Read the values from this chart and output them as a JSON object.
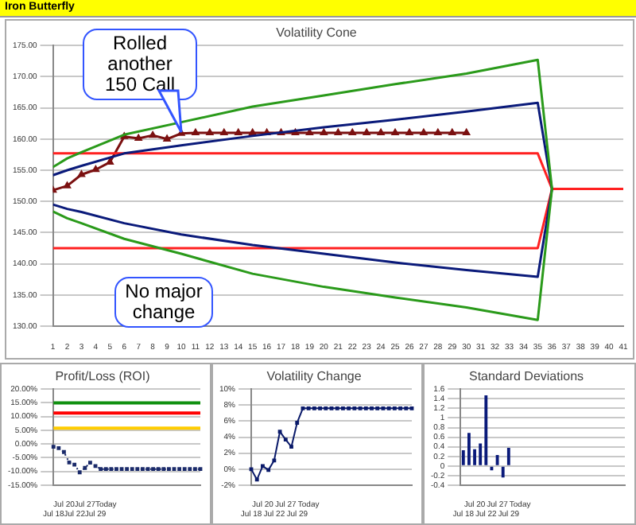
{
  "chart_data": [
    {
      "type": "other",
      "title": "Iron Butterfly"
    },
    {
      "type": "line",
      "title": "Volatility Cone",
      "xlim": [
        1,
        41
      ],
      "xticks": [
        1,
        2,
        3,
        4,
        5,
        6,
        7,
        8,
        9,
        10,
        11,
        12,
        13,
        14,
        15,
        16,
        17,
        18,
        19,
        20,
        21,
        22,
        23,
        24,
        25,
        26,
        27,
        28,
        29,
        30,
        31,
        32,
        33,
        34,
        35,
        36,
        37,
        38,
        39,
        40,
        41
      ],
      "ylim": [
        130,
        175
      ],
      "yticks": [
        {
          "value": 130,
          "label": "130.00"
        },
        {
          "value": 135,
          "label": "135.00"
        },
        {
          "value": 140,
          "label": "140.00"
        },
        {
          "value": 145,
          "label": "145.00"
        },
        {
          "value": 150,
          "label": "150.00"
        },
        {
          "value": 155,
          "label": "155.00"
        },
        {
          "value": 160,
          "label": "160.00"
        },
        {
          "value": 165,
          "label": "165.00"
        },
        {
          "value": 170,
          "label": "170.00"
        },
        {
          "value": 175,
          "label": "175.00"
        }
      ],
      "grid": "y",
      "marker": "none",
      "line_style": "solid",
      "series": [
        {
          "color": "#2a9a1a",
          "x": [
            1,
            2,
            3,
            6,
            10,
            15,
            20,
            25,
            30,
            35,
            36,
            35,
            30,
            25,
            20,
            15,
            10,
            6,
            3,
            2,
            1
          ],
          "values": [
            155.5,
            156.9,
            157.9,
            160.7,
            162.7,
            165.2,
            167.0,
            168.8,
            170.5,
            172.7,
            152,
            131.0,
            133.0,
            134.6,
            136.3,
            138.4,
            141.6,
            144.0,
            146.5,
            147.3,
            148.4
          ]
        },
        {
          "color": "#0a1a7a",
          "x": [
            1,
            2,
            3,
            6,
            10,
            15,
            20,
            25,
            30,
            35,
            36,
            35,
            30,
            25,
            20,
            15,
            10,
            6,
            3,
            2,
            1
          ],
          "values": [
            154.2,
            155.0,
            155.7,
            157.7,
            159.0,
            160.5,
            161.9,
            163.1,
            164.4,
            165.8,
            152,
            137.9,
            139.0,
            140.2,
            141.6,
            143.0,
            144.7,
            146.5,
            148.3,
            148.8,
            149.5
          ]
        },
        {
          "color": "#ff2020",
          "x": [
            1,
            35,
            36,
            41,
            36,
            35,
            1
          ],
          "values": [
            157.7,
            157.7,
            152,
            152,
            152,
            142.5,
            142.5
          ]
        },
        {
          "color": "#7b1010",
          "marker": "triangle",
          "x": [
            1,
            2,
            3,
            4,
            5,
            6,
            7,
            8,
            9,
            10,
            11,
            12,
            13,
            14,
            15,
            16,
            17,
            18,
            19,
            20,
            21,
            22,
            23,
            24,
            25,
            26,
            27,
            28,
            29,
            30
          ],
          "values": [
            151.8,
            152.5,
            154.3,
            155.1,
            156.3,
            160.4,
            160.1,
            160.6,
            160.0,
            160.9,
            161.0,
            161.0,
            161.0,
            161.0,
            161.0,
            161.0,
            161.0,
            161.0,
            161.0,
            161.0,
            161.0,
            161.0,
            161.0,
            161.0,
            161.0,
            161.0,
            161.0,
            161.0,
            161.0,
            161.0
          ]
        }
      ],
      "annotations": [
        {
          "text": "Rolled another 150 Call",
          "x": 10,
          "y": 160.9
        }
      ]
    },
    {
      "type": "line",
      "title": "Profit/Loss (ROI)",
      "categories": [
        "Jul 18",
        null,
        "Jul 20",
        null,
        "Jul 22",
        null,
        "Jul 27",
        null,
        "Jul 29",
        null,
        "Today",
        null,
        null,
        null,
        null,
        null,
        null,
        null,
        null,
        null,
        null,
        null,
        null,
        null,
        null,
        null,
        null,
        null,
        null
      ],
      "ylim": [
        -15,
        20
      ],
      "yticks": [
        {
          "value": -15,
          "label": "-15.00%"
        },
        {
          "value": -10,
          "label": "-10.00%"
        },
        {
          "value": -5,
          "label": "-5.00%"
        },
        {
          "value": 0,
          "label": "0.00%"
        },
        {
          "value": 5,
          "label": "5.00%"
        },
        {
          "value": 10,
          "label": "10.00%"
        },
        {
          "value": 15,
          "label": "15.00%"
        },
        {
          "value": 20,
          "label": "20.00%"
        }
      ],
      "grid": "y",
      "marker": "square",
      "line_style": "dotted",
      "series": [
        {
          "color": "#1a2a6a",
          "values": [
            -1.0,
            -1.5,
            -2.9,
            -6.7,
            -7.5,
            -10.3,
            -8.7,
            -6.8,
            -8.0,
            -9.1,
            -9.1,
            -9.1,
            -9.1,
            -9.1,
            -9.1,
            -9.1,
            -9.1,
            -9.1,
            -9.1,
            -9.1,
            -9.1,
            -9.1,
            -9.1,
            -9.1,
            -9.1,
            -9.1,
            -9.1,
            -9.1,
            -9.1
          ]
        }
      ],
      "ref_lines": [
        {
          "axis": "y",
          "value": 15,
          "color": "#109010"
        },
        {
          "axis": "y",
          "value": 11.3,
          "color": "#ff0000"
        },
        {
          "axis": "y",
          "value": 5.8,
          "color": "#ffcc00"
        }
      ],
      "annotations": [
        "No major change"
      ]
    },
    {
      "type": "line",
      "title": "Volatility Change",
      "categories": [
        "Jul 18",
        null,
        "Jul 20",
        null,
        "Jul 22",
        null,
        "Jul 27",
        null,
        "Jul 29",
        null,
        "Today",
        null,
        null,
        null,
        null,
        null,
        null,
        null,
        null,
        null,
        null,
        null,
        null,
        null,
        null,
        null,
        null,
        null,
        null
      ],
      "ylim": [
        -2,
        10
      ],
      "yticks": [
        {
          "value": -2,
          "label": "-2%"
        },
        {
          "value": 0,
          "label": "0%"
        },
        {
          "value": 2,
          "label": "2%"
        },
        {
          "value": 4,
          "label": "4%"
        },
        {
          "value": 6,
          "label": "6%"
        },
        {
          "value": 8,
          "label": "8%"
        },
        {
          "value": 10,
          "label": "10%"
        }
      ],
      "grid": "y",
      "marker": "square",
      "line_style": "solid",
      "series": [
        {
          "color": "#0a1a6a",
          "values": [
            0,
            -1.3,
            0.4,
            -0.1,
            1.1,
            4.7,
            3.7,
            2.8,
            5.8,
            7.6,
            7.6,
            7.6,
            7.6,
            7.6,
            7.6,
            7.6,
            7.6,
            7.6,
            7.6,
            7.6,
            7.6,
            7.6,
            7.6,
            7.6,
            7.6,
            7.6,
            7.6,
            7.6,
            7.6
          ]
        }
      ]
    },
    {
      "type": "bar",
      "title": "Standard Deviations",
      "categories": [
        "Jul 18",
        null,
        "Jul 20",
        null,
        "Jul 22",
        null,
        "Jul 27",
        null,
        "Jul 29",
        null,
        "Today",
        null,
        null,
        null,
        null,
        null,
        null,
        null,
        null,
        null,
        null,
        null,
        null,
        null,
        null,
        null,
        null,
        null,
        null
      ],
      "ylim": [
        -0.4,
        1.6
      ],
      "yticks": [
        -0.4,
        -0.2,
        0,
        0.2,
        0.4,
        0.6,
        0.8,
        1,
        1.2,
        1.4,
        1.6
      ],
      "grid": "y",
      "series": [
        {
          "color": "#0a1a7a",
          "values": [
            0.33,
            0.69,
            0.35,
            0.47,
            1.47,
            -0.09,
            0.23,
            -0.24,
            0.38,
            null,
            null,
            null,
            null,
            null,
            null,
            null,
            null,
            null,
            null,
            null,
            null,
            null,
            null,
            null,
            null,
            null,
            null,
            null,
            null
          ]
        }
      ]
    }
  ]
}
